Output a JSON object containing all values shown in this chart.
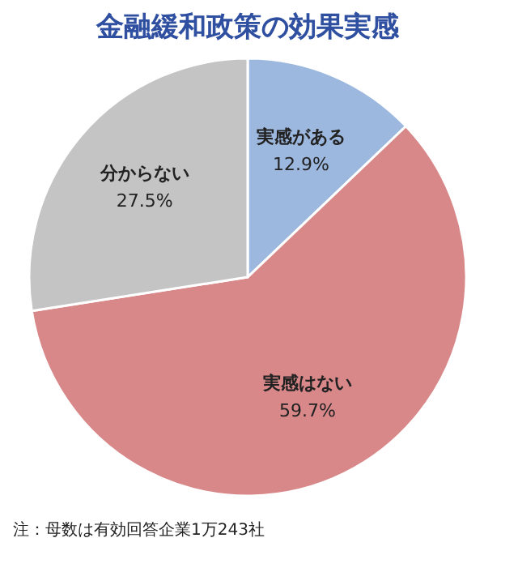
{
  "chart_data": {
    "type": "pie",
    "title": "金融緩和政策の効果実感",
    "categories": [
      "実感がある",
      "実感はない",
      "分からない"
    ],
    "values": [
      12.9,
      59.7,
      27.5
    ],
    "colors": [
      "#9db8df",
      "#d9888a",
      "#c4c4c4"
    ],
    "value_labels": [
      "12.9%",
      "59.7%",
      "27.5%"
    ],
    "annotations": [
      "注：母数は有効回答企業1万243社"
    ]
  }
}
